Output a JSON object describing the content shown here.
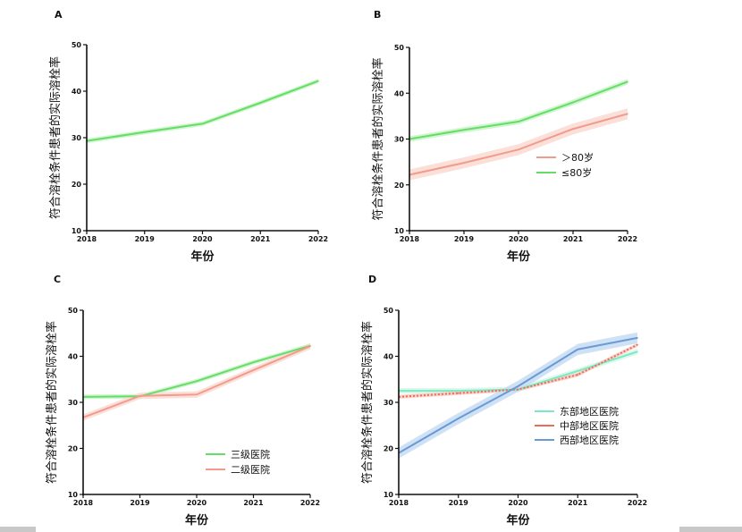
{
  "figure": {
    "colors": {
      "green": "#66dd66",
      "green_band": "#c9f3c9",
      "salmon": "#f29b8c",
      "salmon_band": "#fadad3",
      "teal": "#7ee8c0",
      "teal_band": "#d3f7ea",
      "red": "#ee6b5a",
      "blue": "#6a9ad6",
      "blue_band": "#c7dcf3",
      "axis": "#111111"
    }
  },
  "chart_data": [
    {
      "panel": "A",
      "type": "line",
      "x": [
        "2018",
        "2019",
        "2020",
        "2021",
        "2022"
      ],
      "ylabel": "符合溶栓条件患者的实际溶栓率",
      "xlabel": "年份",
      "ylim": [
        10,
        50
      ],
      "yticks": [
        "10",
        "20",
        "30",
        "40",
        "50"
      ],
      "legend": [],
      "series": [
        {
          "values": [
            29.3,
            31.2,
            33.0,
            37.5,
            42.2
          ],
          "band": 0.5,
          "color": "#66dd66",
          "band_color": "#c9f3c9"
        }
      ]
    },
    {
      "panel": "B",
      "type": "line",
      "x": [
        "2018",
        "2019",
        "2020",
        "2021",
        "2022"
      ],
      "ylabel": "符合溶栓条件患者的实际溶栓率",
      "xlabel": "年份",
      "ylim": [
        10,
        50
      ],
      "yticks": [
        "10",
        "20",
        "30",
        "40",
        "50"
      ],
      "legend": [
        "＞80岁",
        "≤80岁"
      ],
      "series": [
        {
          "name": "＞80岁",
          "values": [
            22.2,
            24.8,
            27.7,
            32.2,
            35.5
          ],
          "band": 1.2,
          "color": "#f29b8c",
          "band_color": "#fadad3"
        },
        {
          "name": "≤80岁",
          "values": [
            30.0,
            32.0,
            33.8,
            38.0,
            42.5
          ],
          "band": 0.6,
          "color": "#66dd66",
          "band_color": "#c9f3c9"
        }
      ]
    },
    {
      "panel": "C",
      "type": "line",
      "x": [
        "2018",
        "2019",
        "2020",
        "2021",
        "2022"
      ],
      "ylabel": "符合溶栓条件患者的实际溶栓率",
      "xlabel": "年份",
      "ylim": [
        10,
        50
      ],
      "yticks": [
        "10",
        "20",
        "30",
        "40",
        "50"
      ],
      "legend": [
        "三级医院",
        "二级医院"
      ],
      "series": [
        {
          "name": "三级医院",
          "values": [
            31.2,
            31.3,
            34.6,
            38.7,
            42.3
          ],
          "band": 0.5,
          "color": "#66dd66",
          "band_color": "#c9f3c9"
        },
        {
          "name": "二级医院",
          "values": [
            26.7,
            31.4,
            31.7,
            37.0,
            42.2
          ],
          "band": 0.7,
          "color": "#f29b8c",
          "band_color": "#fadad3"
        }
      ]
    },
    {
      "panel": "D",
      "type": "line",
      "x": [
        "2018",
        "2019",
        "2020",
        "2021",
        "2022"
      ],
      "ylabel": "符合溶栓条件患者的实际溶栓率",
      "xlabel": "年份",
      "ylim": [
        10,
        50
      ],
      "yticks": [
        "10",
        "20",
        "30",
        "40",
        "50"
      ],
      "legend": [
        "东部地区医院",
        "中部地区医院",
        "西部地区医院"
      ],
      "series": [
        {
          "name": "东部地区医院",
          "values": [
            32.5,
            32.5,
            32.8,
            36.8,
            41.0
          ],
          "band": 0.6,
          "color": "#7ee8c0",
          "band_color": "#d3f7ea"
        },
        {
          "name": "中部地区医院",
          "values": [
            31.2,
            32.0,
            32.8,
            36.0,
            42.5
          ],
          "band": 0.4,
          "color": "#ee6b5a",
          "band_color": "#f7c8c0",
          "dashed": true
        },
        {
          "name": "西部地区医院",
          "values": [
            19.0,
            26.5,
            33.5,
            41.5,
            44.0
          ],
          "band": 1.2,
          "color": "#6a9ad6",
          "band_color": "#c7dcf3"
        }
      ]
    }
  ]
}
